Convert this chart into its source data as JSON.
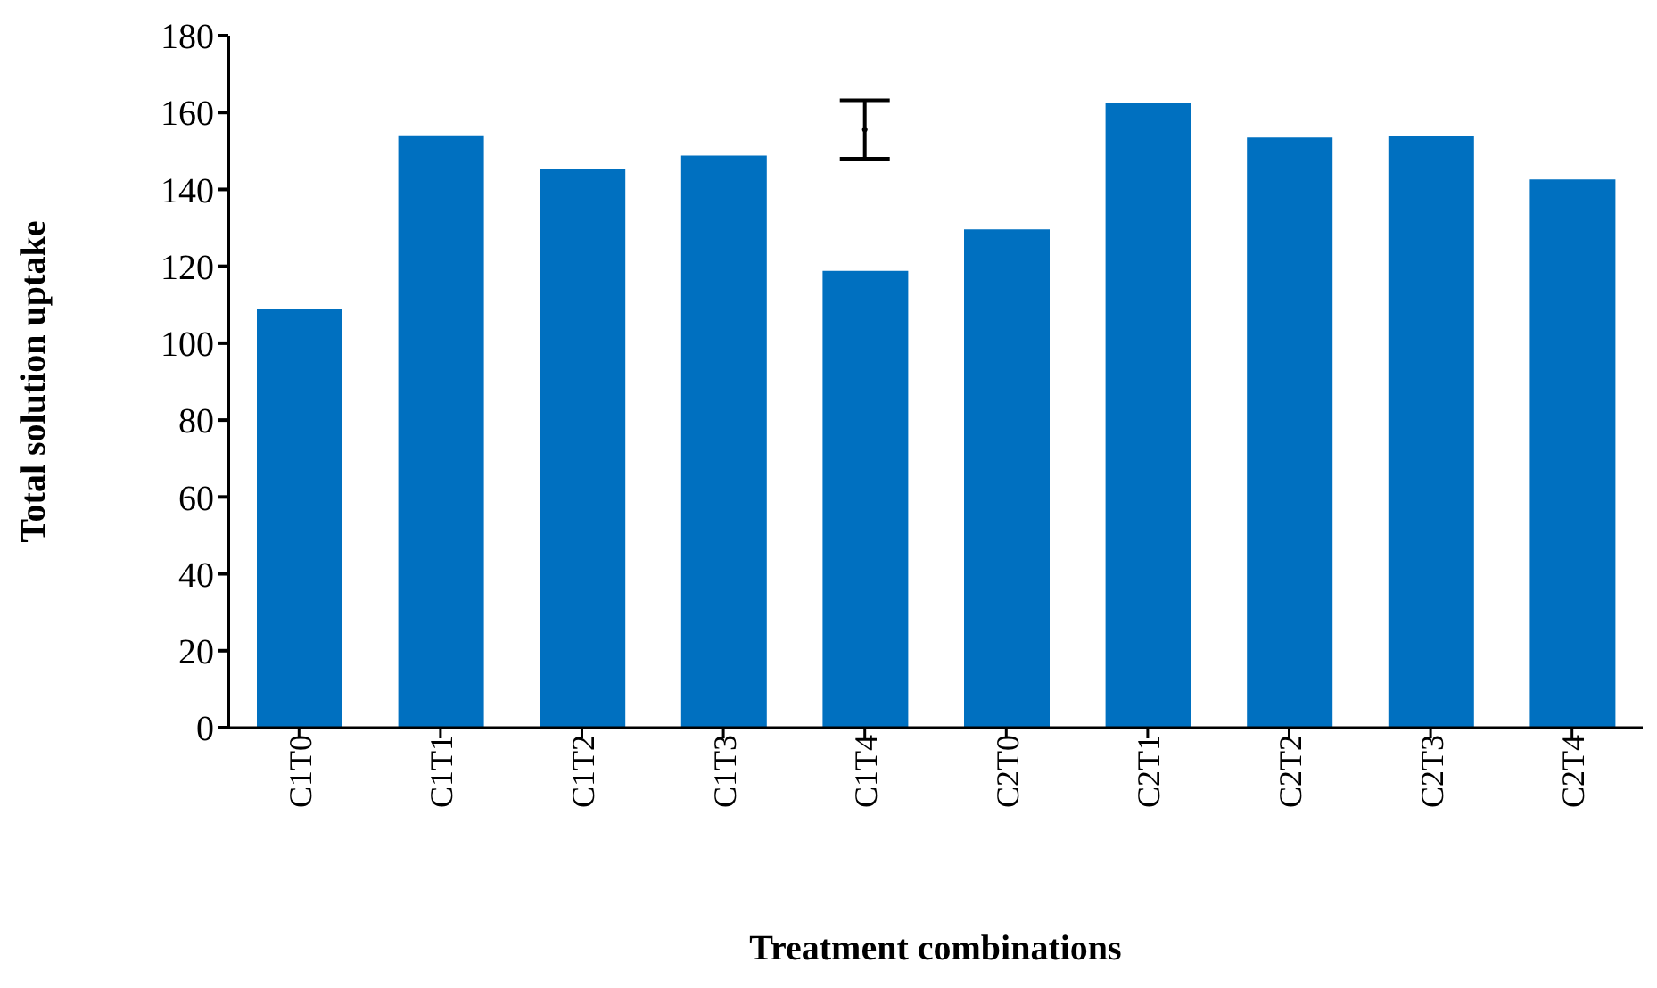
{
  "chart_data": {
    "type": "bar",
    "xlabel": "Treatment combinations",
    "ylabel": "Total solution uptake",
    "categories": [
      "C1T0",
      "C1T1",
      "C1T2",
      "C1T3",
      "C1T4",
      "C2T0",
      "C2T1",
      "C2T2",
      "C2T3",
      "C2T4"
    ],
    "series": [
      {
        "color": "#0070c0",
        "values": [
          108.8,
          154.1,
          145.2,
          148.8,
          118.8,
          129.6,
          162.4,
          153.5,
          154.0,
          142.6
        ]
      },
      {
        "type": "scatter",
        "color": "#000000",
        "x": [
          "C1T4"
        ],
        "values": [
          155.6
        ],
        "errors": [
          7.6
        ]
      }
    ],
    "ylim": [
      0,
      180
    ],
    "yticks": [
      0,
      20,
      40,
      60,
      80,
      100,
      120,
      140,
      160,
      180
    ],
    "grid": false,
    "legend": false
  }
}
